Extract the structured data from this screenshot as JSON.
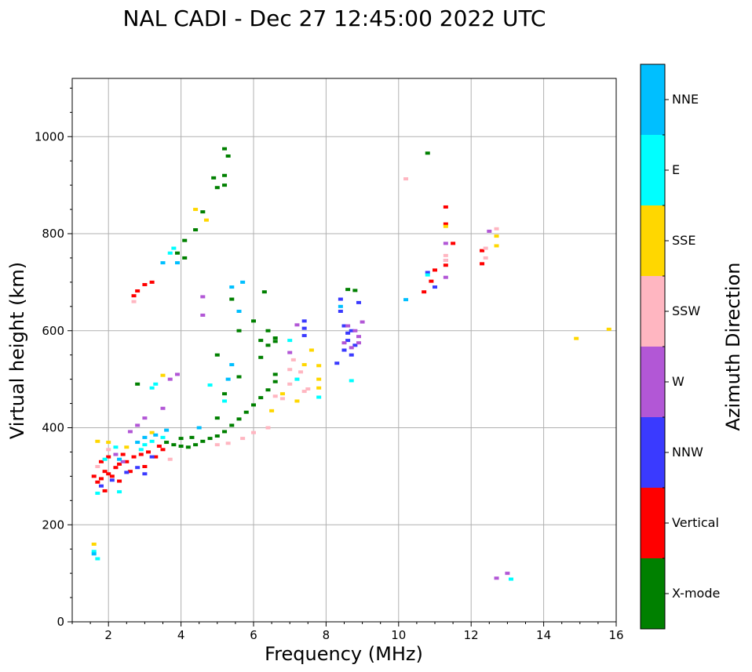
{
  "chart_data": {
    "type": "scatter",
    "title": "NAL CADI - Dec 27 12:45:00 2022 UTC",
    "xlabel": "Frequency (MHz)",
    "ylabel": "Virtual height (km)",
    "xlim": [
      1,
      16
    ],
    "ylim": [
      0,
      1120
    ],
    "xticks": [
      2,
      4,
      6,
      8,
      10,
      12,
      14,
      16
    ],
    "yticks": [
      0,
      200,
      400,
      600,
      800,
      1000
    ],
    "grid": true,
    "colorbar": {
      "label": "Azimuth Direction",
      "categories": [
        {
          "name": "X-mode",
          "color": "#008000"
        },
        {
          "name": "Vertical",
          "color": "#ff0000"
        },
        {
          "name": "NNW",
          "color": "#3a3aff"
        },
        {
          "name": "W",
          "color": "#b257d6"
        },
        {
          "name": "SSW",
          "color": "#ffb6c1"
        },
        {
          "name": "SSE",
          "color": "#ffd700"
        },
        {
          "name": "E",
          "color": "#00ffff"
        },
        {
          "name": "NNE",
          "color": "#00bfff"
        }
      ]
    },
    "series": [
      {
        "name": "X-mode",
        "points": [
          [
            3.6,
            370
          ],
          [
            3.8,
            365
          ],
          [
            4.0,
            362
          ],
          [
            4.2,
            360
          ],
          [
            4.4,
            365
          ],
          [
            4.6,
            372
          ],
          [
            4.8,
            378
          ],
          [
            5.0,
            383
          ],
          [
            5.2,
            392
          ],
          [
            5.4,
            405
          ],
          [
            5.6,
            418
          ],
          [
            5.8,
            432
          ],
          [
            6.0,
            447
          ],
          [
            6.2,
            462
          ],
          [
            6.4,
            478
          ],
          [
            6.6,
            495
          ],
          [
            6.6,
            510
          ],
          [
            6.6,
            585
          ],
          [
            6.6,
            578
          ],
          [
            6.4,
            600
          ],
          [
            6.0,
            620
          ],
          [
            5.4,
            665
          ],
          [
            5.2,
            900
          ],
          [
            5.2,
            920
          ],
          [
            5.0,
            895
          ],
          [
            5.3,
            960
          ],
          [
            5.2,
            975
          ],
          [
            4.9,
            915
          ],
          [
            4.6,
            845
          ],
          [
            4.4,
            808
          ],
          [
            4.1,
            786
          ],
          [
            4.1,
            750
          ],
          [
            3.9,
            760
          ],
          [
            2.8,
            490
          ],
          [
            4.0,
            378
          ],
          [
            4.3,
            380
          ],
          [
            5.2,
            470
          ],
          [
            5.6,
            505
          ],
          [
            6.2,
            545
          ],
          [
            5.0,
            420
          ],
          [
            6.4,
            570
          ],
          [
            5.6,
            600
          ],
          [
            6.2,
            580
          ],
          [
            5.0,
            550
          ],
          [
            6.3,
            680
          ],
          [
            10.8,
            966
          ],
          [
            8.6,
            685
          ],
          [
            8.8,
            683
          ]
        ]
      },
      {
        "name": "Vertical",
        "points": [
          [
            1.6,
            300
          ],
          [
            1.7,
            288
          ],
          [
            1.8,
            295
          ],
          [
            1.9,
            310
          ],
          [
            2.0,
            305
          ],
          [
            2.1,
            300
          ],
          [
            2.2,
            318
          ],
          [
            2.3,
            325
          ],
          [
            2.5,
            330
          ],
          [
            2.7,
            340
          ],
          [
            2.9,
            345
          ],
          [
            3.1,
            350
          ],
          [
            3.3,
            340
          ],
          [
            3.5,
            355
          ],
          [
            1.9,
            270
          ],
          [
            2.3,
            290
          ],
          [
            2.6,
            310
          ],
          [
            3.0,
            320
          ],
          [
            3.4,
            362
          ],
          [
            2.7,
            672
          ],
          [
            2.8,
            682
          ],
          [
            3.0,
            695
          ],
          [
            3.2,
            700
          ],
          [
            10.7,
            680
          ],
          [
            10.9,
            702
          ],
          [
            11.0,
            725
          ],
          [
            11.3,
            735
          ],
          [
            11.3,
            820
          ],
          [
            11.3,
            855
          ],
          [
            11.5,
            780
          ],
          [
            12.3,
            738
          ],
          [
            12.3,
            765
          ],
          [
            2.0,
            340
          ],
          [
            1.8,
            330
          ],
          [
            2.4,
            345
          ]
        ]
      },
      {
        "name": "NNW",
        "points": [
          [
            8.4,
            665
          ],
          [
            8.4,
            640
          ],
          [
            8.5,
            610
          ],
          [
            8.6,
            595
          ],
          [
            8.6,
            580
          ],
          [
            8.8,
            570
          ],
          [
            8.9,
            658
          ],
          [
            8.7,
            600
          ],
          [
            8.5,
            560
          ],
          [
            8.3,
            533
          ],
          [
            8.7,
            550
          ],
          [
            7.4,
            620
          ],
          [
            7.4,
            605
          ],
          [
            7.4,
            590
          ],
          [
            10.8,
            720
          ],
          [
            11.0,
            690
          ],
          [
            2.8,
            318
          ],
          [
            3.0,
            305
          ],
          [
            2.5,
            308
          ],
          [
            3.2,
            340
          ],
          [
            2.1,
            292
          ],
          [
            1.8,
            280
          ]
        ]
      },
      {
        "name": "W",
        "points": [
          [
            8.5,
            575
          ],
          [
            8.7,
            565
          ],
          [
            8.9,
            575
          ],
          [
            8.9,
            588
          ],
          [
            9.0,
            618
          ],
          [
            8.8,
            600
          ],
          [
            8.6,
            610
          ],
          [
            7.2,
            612
          ],
          [
            7.0,
            555
          ],
          [
            3.5,
            440
          ],
          [
            3.7,
            500
          ],
          [
            3.9,
            510
          ],
          [
            2.6,
            392
          ],
          [
            2.8,
            405
          ],
          [
            3.0,
            420
          ],
          [
            4.6,
            670
          ],
          [
            4.6,
            632
          ],
          [
            11.3,
            710
          ],
          [
            11.3,
            780
          ],
          [
            12.7,
            90
          ],
          [
            13.0,
            100
          ],
          [
            12.5,
            805
          ],
          [
            11.3,
            745
          ],
          [
            2.4,
            330
          ],
          [
            2.2,
            345
          ]
        ]
      },
      {
        "name": "SSW",
        "points": [
          [
            5.0,
            365
          ],
          [
            5.3,
            368
          ],
          [
            5.7,
            378
          ],
          [
            6.0,
            390
          ],
          [
            6.4,
            400
          ],
          [
            6.8,
            460
          ],
          [
            7.0,
            490
          ],
          [
            7.2,
            500
          ],
          [
            7.5,
            480
          ],
          [
            7.1,
            540
          ],
          [
            7.3,
            515
          ],
          [
            10.2,
            913
          ],
          [
            11.3,
            755
          ],
          [
            11.3,
            745
          ],
          [
            12.4,
            750
          ],
          [
            12.4,
            770
          ],
          [
            12.7,
            810
          ],
          [
            2.7,
            660
          ],
          [
            7.4,
            475
          ],
          [
            7.0,
            520
          ],
          [
            6.6,
            465
          ],
          [
            3.7,
            335
          ],
          [
            2.0,
            355
          ],
          [
            1.7,
            320
          ]
        ]
      },
      {
        "name": "SSE",
        "points": [
          [
            4.4,
            850
          ],
          [
            4.7,
            828
          ],
          [
            7.8,
            528
          ],
          [
            7.8,
            500
          ],
          [
            7.8,
            482
          ],
          [
            7.2,
            455
          ],
          [
            7.4,
            530
          ],
          [
            7.6,
            560
          ],
          [
            6.8,
            470
          ],
          [
            6.5,
            435
          ],
          [
            14.9,
            584
          ],
          [
            15.8,
            603
          ],
          [
            12.7,
            775
          ],
          [
            12.7,
            795
          ],
          [
            11.3,
            815
          ],
          [
            2.5,
            360
          ],
          [
            2.0,
            370
          ],
          [
            3.5,
            508
          ],
          [
            3.2,
            390
          ],
          [
            1.7,
            372
          ],
          [
            1.6,
            160
          ]
        ]
      },
      {
        "name": "E",
        "points": [
          [
            3.2,
            482
          ],
          [
            3.3,
            490
          ],
          [
            3.8,
            770
          ],
          [
            3.7,
            760
          ],
          [
            4.8,
            488
          ],
          [
            3.0,
            365
          ],
          [
            3.2,
            372
          ],
          [
            3.5,
            380
          ],
          [
            2.9,
            355
          ],
          [
            2.2,
            360
          ],
          [
            1.9,
            335
          ],
          [
            1.7,
            265
          ],
          [
            1.6,
            145
          ],
          [
            1.7,
            130
          ],
          [
            8.7,
            497
          ],
          [
            7.8,
            463
          ],
          [
            10.8,
            715
          ],
          [
            13.1,
            88
          ],
          [
            5.2,
            455
          ],
          [
            7.2,
            500
          ],
          [
            7.0,
            580
          ],
          [
            2.3,
            268
          ]
        ]
      },
      {
        "name": "NNE",
        "points": [
          [
            5.4,
            690
          ],
          [
            5.7,
            700
          ],
          [
            5.6,
            640
          ],
          [
            5.4,
            530
          ],
          [
            5.3,
            500
          ],
          [
            10.2,
            664
          ],
          [
            3.5,
            740
          ],
          [
            3.9,
            740
          ],
          [
            4.5,
            400
          ],
          [
            2.8,
            370
          ],
          [
            3.0,
            380
          ],
          [
            3.3,
            385
          ],
          [
            3.6,
            395
          ],
          [
            2.3,
            335
          ],
          [
            8.4,
            650
          ],
          [
            1.6,
            140
          ]
        ]
      }
    ]
  }
}
